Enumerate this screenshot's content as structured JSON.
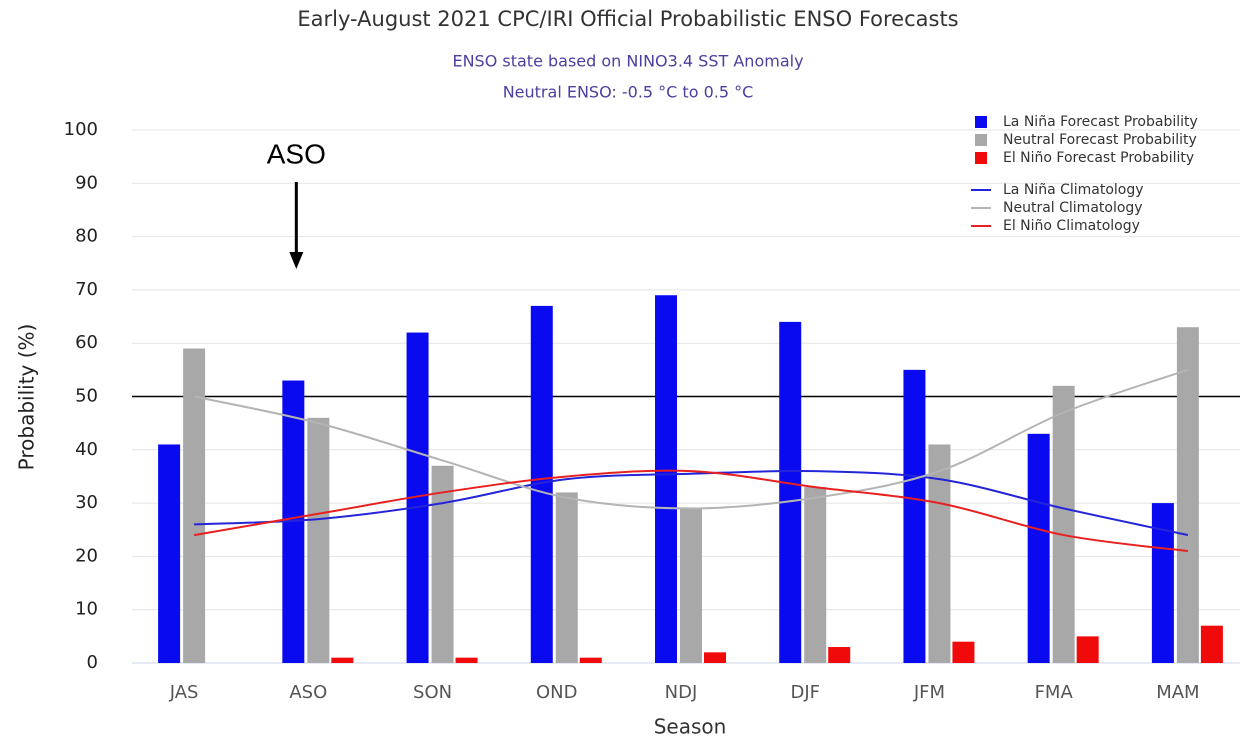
{
  "chart_data": {
    "type": "bar",
    "title": "Early-August 2021 CPC/IRI Official Probabilistic ENSO Forecasts",
    "subtitle": [
      "ENSO state based on NINO3.4 SST Anomaly",
      "Neutral ENSO: -0.5 °C to 0.5 °C"
    ],
    "x_label": "Season",
    "y_label": "Probability (%)",
    "annotation": "ASO",
    "categories": [
      "JAS",
      "ASO",
      "SON",
      "OND",
      "NDJ",
      "DJF",
      "JFM",
      "FMA",
      "MAM"
    ],
    "series": [
      {
        "name": "La Niña Forecast Probability",
        "color": "#0a0af0",
        "values": [
          41,
          53,
          62,
          67,
          69,
          64,
          55,
          43,
          30
        ]
      },
      {
        "name": "Neutral Forecast Probability",
        "color": "#a8a8a8",
        "values": [
          59,
          46,
          37,
          32,
          29,
          33,
          41,
          52,
          63
        ]
      },
      {
        "name": "El Niño Forecast Probability",
        "color": "#f00a0a",
        "values": [
          0,
          1,
          1,
          1,
          2,
          3,
          4,
          5,
          7
        ]
      },
      {
        "name": "La Niña Climatology",
        "type": "line",
        "color": "#2424d8",
        "values": [
          26,
          27,
          30,
          34.5,
          35.5,
          36,
          34.5,
          29,
          24
        ]
      },
      {
        "name": "Neutral Climatology",
        "type": "line",
        "color": "#b4b4b4",
        "values": [
          50,
          45,
          38,
          31,
          29,
          31,
          36,
          47,
          55
        ]
      },
      {
        "name": "El Niño Climatology",
        "type": "line",
        "color": "#e82020",
        "values": [
          24,
          28,
          32,
          35,
          36,
          33,
          30,
          24,
          21
        ]
      }
    ],
    "reference_line": 50,
    "ylim": [
      0,
      100
    ],
    "yticks": [
      0,
      10,
      20,
      30,
      40,
      50,
      60,
      70,
      80,
      90,
      100
    ],
    "grid": true,
    "legend": "top-right"
  }
}
